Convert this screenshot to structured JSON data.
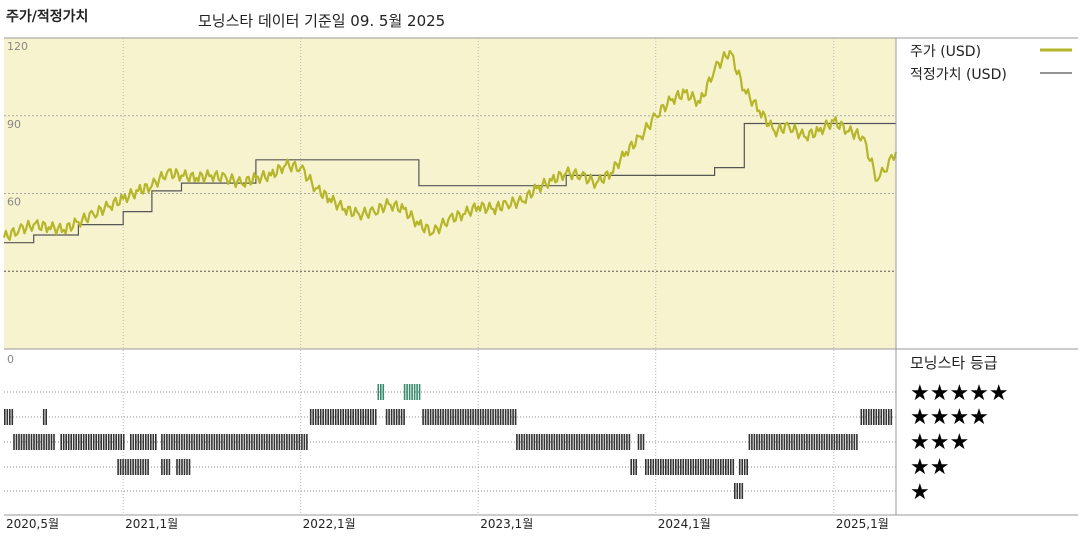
{
  "header": {
    "left_title": "주가/적정가치",
    "subtitle": "모닝스타 데이터 기준일 09. 5월 2025"
  },
  "legend": {
    "price_label": "주가 (USD)",
    "fair_label": "적정가치 (USD)",
    "rating_title": "모닝스타 등급"
  },
  "rating_rows": [
    "★★★★★",
    "★★★★",
    "★★★",
    "★★",
    "★"
  ],
  "colors": {
    "price": "#b5b62a",
    "fair": "#555555",
    "upper_bg": "#f8f3cf",
    "five_star": "#3a8a6e",
    "bars": "#333333"
  },
  "chart_data": {
    "type": "line",
    "x_range": [
      "2020-05-01",
      "2025-05-09"
    ],
    "x_ticks": [
      {
        "date": "2020-05-01",
        "label": "2020,5월"
      },
      {
        "date": "2021-01-01",
        "label": "2021,1월"
      },
      {
        "date": "2022-01-01",
        "label": "2022,1월"
      },
      {
        "date": "2023-01-01",
        "label": "2023,1월"
      },
      {
        "date": "2024-01-01",
        "label": "2024,1월"
      },
      {
        "date": "2025-01-01",
        "label": "2025,1월"
      }
    ],
    "ylim": [
      0,
      120
    ],
    "y_ticks": [
      {
        "v": 120,
        "label": "120"
      },
      {
        "v": 90,
        "label": "90"
      },
      {
        "v": 60,
        "label": "60"
      },
      {
        "v": 0,
        "label": "0"
      }
    ],
    "series": [
      {
        "name": "주가 (USD)",
        "points": [
          [
            "2020-05-01",
            43
          ],
          [
            "2020-06-01",
            46
          ],
          [
            "2020-07-01",
            48
          ],
          [
            "2020-08-01",
            47
          ],
          [
            "2020-09-01",
            46
          ],
          [
            "2020-10-01",
            49
          ],
          [
            "2020-11-01",
            52
          ],
          [
            "2020-12-01",
            55
          ],
          [
            "2021-01-01",
            58
          ],
          [
            "2021-02-01",
            61
          ],
          [
            "2021-03-01",
            63
          ],
          [
            "2021-04-01",
            68
          ],
          [
            "2021-05-01",
            67
          ],
          [
            "2021-06-01",
            66
          ],
          [
            "2021-07-01",
            67
          ],
          [
            "2021-08-01",
            66
          ],
          [
            "2021-09-01",
            64
          ],
          [
            "2021-10-01",
            66
          ],
          [
            "2021-11-01",
            67
          ],
          [
            "2021-12-01",
            71
          ],
          [
            "2022-01-01",
            70
          ],
          [
            "2022-02-01",
            62
          ],
          [
            "2022-03-01",
            58
          ],
          [
            "2022-04-01",
            54
          ],
          [
            "2022-05-01",
            52
          ],
          [
            "2022-06-01",
            53
          ],
          [
            "2022-07-01",
            56
          ],
          [
            "2022-08-01",
            54
          ],
          [
            "2022-09-01",
            48
          ],
          [
            "2022-10-01",
            45
          ],
          [
            "2022-11-01",
            50
          ],
          [
            "2022-12-01",
            52
          ],
          [
            "2023-01-01",
            55
          ],
          [
            "2023-02-01",
            54
          ],
          [
            "2023-03-01",
            56
          ],
          [
            "2023-04-01",
            57
          ],
          [
            "2023-05-01",
            62
          ],
          [
            "2023-06-01",
            65
          ],
          [
            "2023-07-01",
            68
          ],
          [
            "2023-08-01",
            67
          ],
          [
            "2023-09-01",
            64
          ],
          [
            "2023-10-01",
            68
          ],
          [
            "2023-11-01",
            76
          ],
          [
            "2023-12-01",
            82
          ],
          [
            "2024-01-01",
            90
          ],
          [
            "2024-02-01",
            96
          ],
          [
            "2024-03-01",
            99
          ],
          [
            "2024-04-01",
            95
          ],
          [
            "2024-05-01",
            108
          ],
          [
            "2024-06-01",
            115
          ],
          [
            "2024-07-01",
            100
          ],
          [
            "2024-08-01",
            92
          ],
          [
            "2024-09-01",
            84
          ],
          [
            "2024-10-01",
            86
          ],
          [
            "2024-11-01",
            82
          ],
          [
            "2024-12-01",
            84
          ],
          [
            "2025-01-01",
            88
          ],
          [
            "2025-02-01",
            84
          ],
          [
            "2025-03-01",
            82
          ],
          [
            "2025-04-01",
            65
          ],
          [
            "2025-05-09",
            76
          ]
        ]
      },
      {
        "name": "적정가치 (USD)",
        "steps": [
          [
            "2020-05-01",
            41
          ],
          [
            "2020-07-01",
            44
          ],
          [
            "2020-10-01",
            48
          ],
          [
            "2021-01-01",
            53
          ],
          [
            "2021-03-01",
            61
          ],
          [
            "2021-05-01",
            64
          ],
          [
            "2021-10-01",
            73
          ],
          [
            "2022-09-01",
            63
          ],
          [
            "2023-07-01",
            67
          ],
          [
            "2024-05-01",
            70
          ],
          [
            "2024-07-01",
            87
          ],
          [
            "2025-01-01",
            87
          ],
          [
            "2025-05-09",
            87
          ]
        ]
      }
    ],
    "ratings": [
      {
        "stars": 5,
        "spans": [
          [
            "2022-06-08",
            "2022-06-20"
          ],
          [
            "2022-08-01",
            "2022-09-05"
          ]
        ]
      },
      {
        "stars": 4,
        "spans": [
          [
            "2020-05-01",
            "2020-05-20"
          ],
          [
            "2020-07-20",
            "2020-07-30"
          ],
          [
            "2022-01-20",
            "2022-06-05"
          ],
          [
            "2022-06-25",
            "2022-08-01"
          ],
          [
            "2022-09-08",
            "2023-03-20"
          ],
          [
            "2025-02-25",
            "2025-04-30"
          ]
        ]
      },
      {
        "stars": 3,
        "spans": [
          [
            "2020-05-20",
            "2020-08-15"
          ],
          [
            "2020-08-25",
            "2021-01-01"
          ],
          [
            "2021-01-15",
            "2021-03-10"
          ],
          [
            "2021-03-20",
            "2022-01-15"
          ],
          [
            "2023-03-20",
            "2023-11-10"
          ],
          [
            "2023-11-25",
            "2023-12-10"
          ],
          [
            "2024-07-10",
            "2025-02-20"
          ]
        ]
      },
      {
        "stars": 2,
        "spans": [
          [
            "2020-12-20",
            "2021-02-20"
          ],
          [
            "2021-03-20",
            "2021-04-05"
          ],
          [
            "2021-04-20",
            "2021-05-20"
          ],
          [
            "2023-11-10",
            "2023-11-25"
          ],
          [
            "2023-12-10",
            "2024-06-10"
          ],
          [
            "2024-06-20",
            "2024-07-10"
          ]
        ]
      },
      {
        "stars": 1,
        "spans": [
          [
            "2024-06-10",
            "2024-06-28"
          ]
        ]
      }
    ]
  }
}
